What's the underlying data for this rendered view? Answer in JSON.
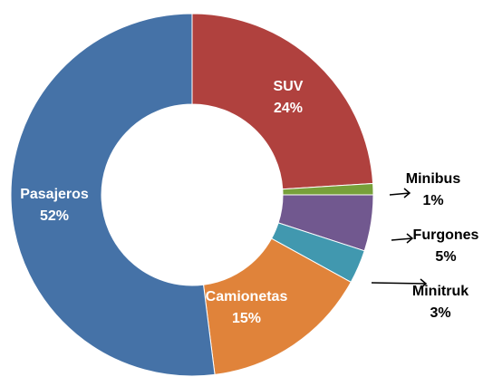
{
  "chart_data": {
    "type": "donut",
    "categories": [
      "SUV",
      "Minibus",
      "Furgones",
      "Minitruk",
      "Camionetas",
      "Pasajeros"
    ],
    "values": [
      24,
      1,
      5,
      3,
      15,
      52
    ],
    "value_labels": [
      "24%",
      "1%",
      "5%",
      "3%",
      "15%",
      "52%"
    ],
    "colors": [
      "#b0413e",
      "#77a03a",
      "#71588f",
      "#4198af",
      "#e0833a",
      "#4572a7"
    ]
  }
}
